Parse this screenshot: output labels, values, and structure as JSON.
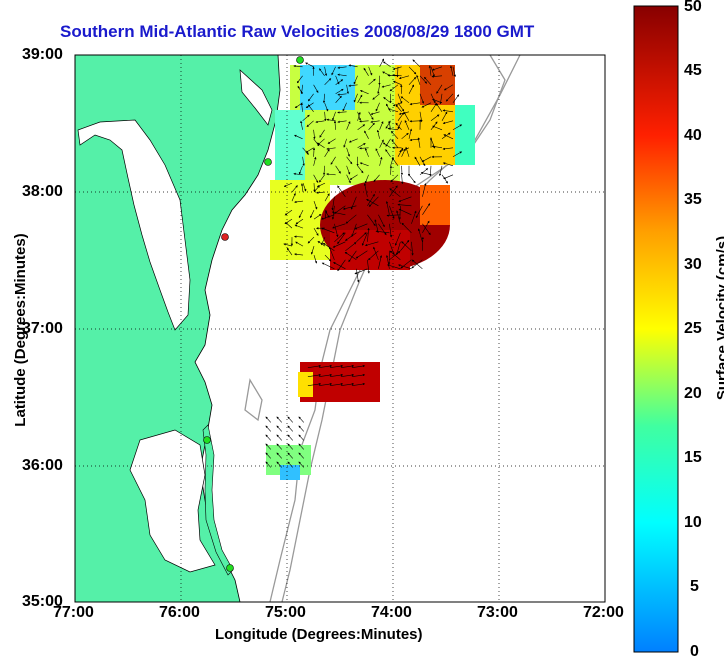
{
  "title": "Southern Mid-Atlantic Raw Velocities 2008/08/29 1800 GMT",
  "axes": {
    "xlabel": "Longitude (Degrees:Minutes)",
    "ylabel": "Latitude (Degrees:Minutes)",
    "xticks": [
      "77:00",
      "76:00",
      "75:00",
      "74:00",
      "73:00",
      "72:00"
    ],
    "yticks": [
      "39:00",
      "38:00",
      "37:00",
      "36:00",
      "35:00"
    ],
    "xlim": [
      -77,
      -72
    ],
    "ylim": [
      35,
      39
    ]
  },
  "colorbar": {
    "label": "Surface Velocity (cm/s)",
    "ticks": [
      "50",
      "45",
      "40",
      "35",
      "30",
      "25",
      "20",
      "15",
      "10",
      "5",
      "0"
    ],
    "range": [
      0,
      50
    ]
  },
  "colors": {
    "land": "#55f0a8",
    "title": "#1a1acc",
    "bathymetry": "#999999",
    "station_green": "#22dd22",
    "station_red": "#dd2222"
  },
  "chart_data": {
    "type": "heatmap",
    "title": "Southern Mid-Atlantic Raw Velocities 2008/08/29 1800 GMT",
    "xlabel": "Longitude (Degrees:Minutes)",
    "ylabel": "Latitude (Degrees:Minutes)",
    "xlim": [
      -77,
      -72
    ],
    "ylim": [
      35,
      39
    ],
    "grid": true,
    "colorbar_label": "Surface Velocity (cm/s)",
    "colorbar_range": [
      0,
      50
    ],
    "regions": [
      {
        "lon": [
          -74.9,
          -73.9
        ],
        "lat": [
          38.1,
          38.95
        ],
        "speed": 24
      },
      {
        "lon": [
          -74.0,
          -73.4
        ],
        "lat": [
          38.1,
          38.95
        ],
        "speed": 30
      },
      {
        "lon": [
          -74.6,
          -73.7
        ],
        "lat": [
          37.4,
          38.0
        ],
        "speed": 47
      },
      {
        "lon": [
          -75.0,
          -74.6
        ],
        "lat": [
          37.5,
          38.1
        ],
        "speed": 22
      },
      {
        "lon": [
          -74.85,
          -74.3
        ],
        "lat": [
          36.55,
          36.75
        ],
        "speed": 44
      },
      {
        "lon": [
          -75.2,
          -74.75
        ],
        "lat": [
          35.95,
          36.35
        ],
        "speed": 17
      }
    ],
    "stations": [
      {
        "lon": -74.85,
        "lat": 38.97,
        "status": "green"
      },
      {
        "lon": -75.15,
        "lat": 38.22,
        "status": "green"
      },
      {
        "lon": -75.55,
        "lat": 37.67,
        "status": "red"
      },
      {
        "lon": -75.75,
        "lat": 36.17,
        "status": "green"
      },
      {
        "lon": -75.48,
        "lat": 35.24,
        "status": "green"
      }
    ]
  }
}
